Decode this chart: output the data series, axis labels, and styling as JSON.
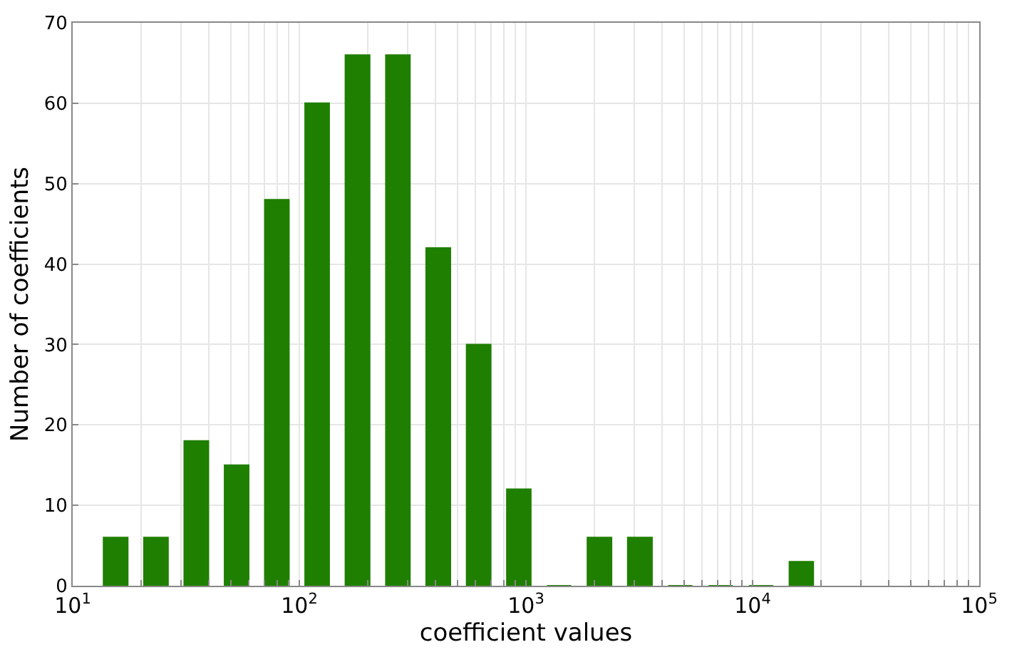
{
  "chart_data": {
    "type": "histogram",
    "xlabel": "coefficient values",
    "ylabel": "Number of coefficients",
    "bins": [
      12.6,
      19.0,
      28.6,
      43.1,
      64.9,
      97.7,
      147,
      222,
      334,
      504,
      759,
      1140,
      1720,
      2590,
      3910,
      5890,
      8870,
      13400,
      20100
    ],
    "values": [
      6,
      6,
      18,
      15,
      48,
      60,
      66,
      66,
      42,
      30,
      12,
      0,
      6,
      6,
      0,
      0,
      0,
      3
    ],
    "color": "#1f7f00",
    "log": "x",
    "grid": true,
    "xlim": [
      10,
      100000
    ],
    "ylim": [
      0,
      70
    ],
    "xticks": [
      {
        "value": 10,
        "label": "10$^{1}$"
      },
      {
        "value": 20,
        "label": null
      },
      {
        "value": 30,
        "label": null
      },
      {
        "value": 40,
        "label": null
      },
      {
        "value": 50,
        "label": null
      },
      {
        "value": 60,
        "label": null
      },
      {
        "value": 70,
        "label": null
      },
      {
        "value": 80,
        "label": null
      },
      {
        "value": 90,
        "label": null
      },
      {
        "value": 100,
        "label": "10$^{2}$"
      },
      {
        "value": 200,
        "label": null
      },
      {
        "value": 300,
        "label": null
      },
      {
        "value": 400,
        "label": null
      },
      {
        "value": 500,
        "label": null
      },
      {
        "value": 600,
        "label": null
      },
      {
        "value": 700,
        "label": null
      },
      {
        "value": 800,
        "label": null
      },
      {
        "value": 900,
        "label": null
      },
      {
        "value": 1000,
        "label": "10$^{3}$"
      },
      {
        "value": 2000,
        "label": null
      },
      {
        "value": 3000,
        "label": null
      },
      {
        "value": 4000,
        "label": null
      },
      {
        "value": 5000,
        "label": null
      },
      {
        "value": 6000,
        "label": null
      },
      {
        "value": 7000,
        "label": null
      },
      {
        "value": 8000,
        "label": null
      },
      {
        "value": 9000,
        "label": null
      },
      {
        "value": 10000,
        "label": "10$^{4}$"
      },
      {
        "value": 20000,
        "label": null
      },
      {
        "value": 30000,
        "label": null
      },
      {
        "value": 40000,
        "label": null
      },
      {
        "value": 50000,
        "label": null
      },
      {
        "value": 60000,
        "label": null
      },
      {
        "value": 70000,
        "label": null
      },
      {
        "value": 80000,
        "label": null
      },
      {
        "value": 90000,
        "label": null
      },
      {
        "value": 100000,
        "label": "10$^{5}$"
      }
    ],
    "yticks": [
      0,
      10,
      20,
      30,
      40,
      50,
      60,
      70
    ]
  }
}
